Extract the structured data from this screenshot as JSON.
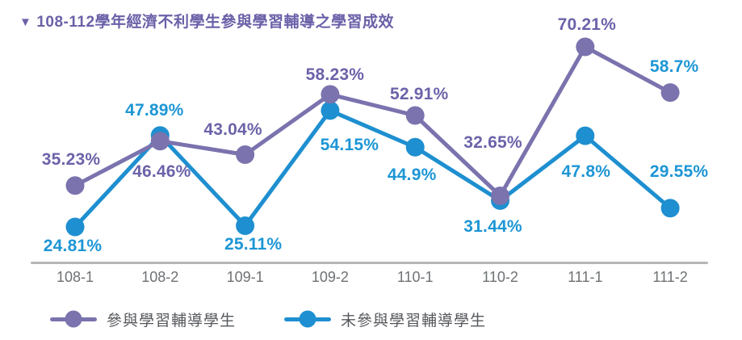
{
  "header": {
    "marker": "▼"
  },
  "chart_data": {
    "type": "line",
    "title": "108-112學年經濟不利學生參與學習輔導之學習成效",
    "categories": [
      "108-1",
      "108-2",
      "109-1",
      "109-2",
      "110-1",
      "110-2",
      "111-1",
      "111-2"
    ],
    "series": [
      {
        "name": "參與學習輔導學生",
        "color": "#7a73ae",
        "label_color": "#6b63a9",
        "values": [
          35.23,
          46.46,
          43.04,
          58.23,
          52.91,
          32.65,
          70.21,
          58.7
        ],
        "labels": [
          "35.23%",
          "46.46%",
          "43.04%",
          "58.23%",
          "52.91%",
          "32.65%",
          "70.21%",
          "58.7%"
        ],
        "label_offsets": [
          [
            -5,
            -32
          ],
          [
            2,
            38
          ],
          [
            -15,
            -30
          ],
          [
            6,
            -24
          ],
          [
            5,
            -26
          ],
          [
            -9,
            -66
          ],
          [
            2,
            -27
          ],
          [
            5,
            -32
          ]
        ],
        "label_color_overrides": {
          "7": "#1d96d5"
        }
      },
      {
        "name": "未參與學習輔導學生",
        "color": "#1e8fd0",
        "label_color": "#1d96d5",
        "values": [
          24.81,
          47.89,
          25.11,
          54.15,
          44.9,
          31.44,
          47.8,
          29.55
        ],
        "labels": [
          "24.81%",
          "47.89%",
          "25.11%",
          "54.15%",
          "44.9%",
          "31.44%",
          "47.8%",
          "29.55%"
        ],
        "label_offsets": [
          [
            -3,
            24
          ],
          [
            -7,
            -31
          ],
          [
            10,
            23
          ],
          [
            24,
            43
          ],
          [
            -4,
            35
          ],
          [
            -9,
            33
          ],
          [
            1,
            45
          ],
          [
            11,
            -45
          ]
        ]
      }
    ],
    "ylim": [
      15,
      75
    ],
    "grid": false,
    "legend_position": "bottom",
    "title_color": "#6a61a8",
    "axis_color": "#b4b6b8",
    "tick_color": "#6e7174",
    "legend_text_color": "#56585c"
  }
}
